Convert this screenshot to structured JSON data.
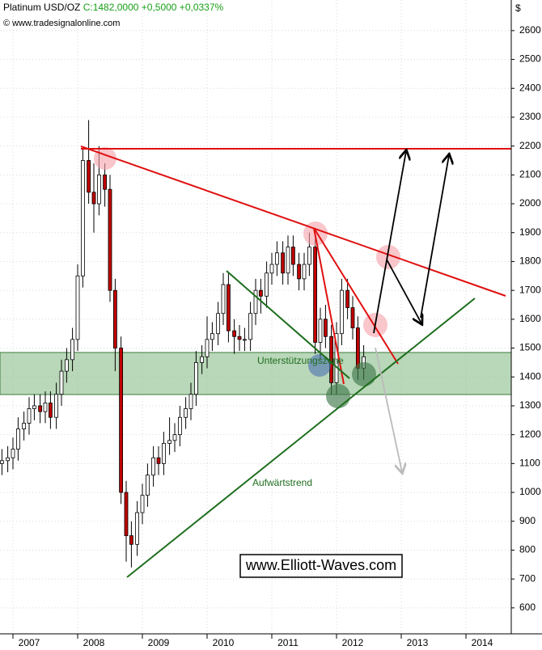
{
  "chart_data": {
    "type": "candlestick",
    "title": "Platinum USD/OZ",
    "subtitle": "C:1482,0000 +0,5000 +0,0337%",
    "source": "© www.tradesignalonline.com",
    "ylabel": "$",
    "annotations": [
      "Unterstützungszone",
      "Aufwärtstrend",
      "www.Elliott-Waves.com"
    ],
    "up_color": "#ffffff",
    "down_color": "#c00000",
    "wick_color": "#000000",
    "grid": true,
    "xlim": [
      2006.8,
      2014.7
    ],
    "xticks": [
      2007,
      2008,
      2009,
      2010,
      2011,
      2012,
      2013,
      2014
    ],
    "ylim": [
      510,
      2706
    ],
    "yticks": [
      600,
      700,
      800,
      900,
      1000,
      1100,
      1200,
      1300,
      1400,
      1500,
      1600,
      1700,
      1800,
      1900,
      2000,
      2100,
      2200,
      2300,
      2400,
      2500,
      2600
    ],
    "x": [
      2006.83,
      2006.92,
      2007.0,
      2007.08,
      2007.17,
      2007.25,
      2007.33,
      2007.42,
      2007.5,
      2007.58,
      2007.67,
      2007.75,
      2007.83,
      2007.92,
      2008.0,
      2008.08,
      2008.17,
      2008.25,
      2008.33,
      2008.42,
      2008.5,
      2008.58,
      2008.67,
      2008.75,
      2008.83,
      2008.92,
      2009.0,
      2009.08,
      2009.17,
      2009.25,
      2009.33,
      2009.42,
      2009.5,
      2009.58,
      2009.67,
      2009.75,
      2009.83,
      2009.92,
      2010.0,
      2010.08,
      2010.17,
      2010.25,
      2010.33,
      2010.42,
      2010.5,
      2010.58,
      2010.67,
      2010.75,
      2010.83,
      2010.92,
      2011.0,
      2011.08,
      2011.17,
      2011.25,
      2011.33,
      2011.42,
      2011.5,
      2011.58,
      2011.67,
      2011.75,
      2011.83,
      2011.92,
      2012.0,
      2012.08,
      2012.17,
      2012.25,
      2012.33,
      2012.42
    ],
    "open": [
      1100,
      1110,
      1120,
      1150,
      1220,
      1240,
      1290,
      1300,
      1280,
      1310,
      1260,
      1340,
      1420,
      1460,
      1530,
      1750,
      2150,
      2040,
      2000,
      2100,
      2050,
      1700,
      1500,
      1000,
      850,
      820,
      930,
      990,
      1060,
      1120,
      1100,
      1170,
      1180,
      1200,
      1260,
      1290,
      1340,
      1450,
      1470,
      1530,
      1550,
      1620,
      1720,
      1560,
      1540,
      1530,
      1530,
      1620,
      1700,
      1680,
      1760,
      1790,
      1830,
      1760,
      1850,
      1790,
      1740,
      1790,
      1850,
      1520,
      1600,
      1540,
      1380,
      1550,
      1700,
      1640,
      1570,
      1430
    ],
    "high": [
      1150,
      1160,
      1190,
      1260,
      1280,
      1330,
      1340,
      1340,
      1350,
      1350,
      1380,
      1460,
      1500,
      1570,
      1790,
      2190,
      2290,
      2140,
      2200,
      2140,
      2100,
      1740,
      1540,
      1040,
      900,
      970,
      1030,
      1100,
      1160,
      1160,
      1210,
      1260,
      1240,
      1300,
      1330,
      1380,
      1490,
      1510,
      1610,
      1590,
      1660,
      1760,
      1760,
      1600,
      1580,
      1570,
      1660,
      1740,
      1740,
      1800,
      1830,
      1870,
      1870,
      1890,
      1890,
      1830,
      1830,
      1900,
      1880,
      1640,
      1650,
      1580,
      1590,
      1740,
      1740,
      1680,
      1610,
      1510
    ],
    "low": [
      1060,
      1070,
      1080,
      1110,
      1180,
      1200,
      1250,
      1240,
      1240,
      1220,
      1220,
      1300,
      1380,
      1420,
      1490,
      1710,
      2000,
      1900,
      1960,
      1990,
      1660,
      1420,
      960,
      760,
      740,
      780,
      890,
      950,
      1020,
      1060,
      1060,
      1130,
      1140,
      1160,
      1220,
      1250,
      1300,
      1410,
      1430,
      1490,
      1510,
      1580,
      1520,
      1480,
      1490,
      1490,
      1490,
      1580,
      1620,
      1640,
      1720,
      1750,
      1720,
      1720,
      1750,
      1700,
      1700,
      1750,
      1480,
      1460,
      1500,
      1340,
      1340,
      1510,
      1600,
      1530,
      1390,
      1390
    ],
    "close": [
      1110,
      1120,
      1150,
      1220,
      1240,
      1290,
      1300,
      1280,
      1310,
      1260,
      1340,
      1420,
      1460,
      1530,
      1750,
      2150,
      2040,
      2000,
      2100,
      2050,
      1700,
      1500,
      1000,
      850,
      820,
      930,
      990,
      1060,
      1120,
      1100,
      1170,
      1180,
      1200,
      1260,
      1290,
      1340,
      1450,
      1470,
      1530,
      1550,
      1620,
      1720,
      1560,
      1540,
      1530,
      1530,
      1620,
      1700,
      1680,
      1760,
      1790,
      1830,
      1760,
      1850,
      1790,
      1740,
      1790,
      1850,
      1520,
      1600,
      1540,
      1380,
      1550,
      1700,
      1640,
      1570,
      1430,
      1470
    ]
  }
}
